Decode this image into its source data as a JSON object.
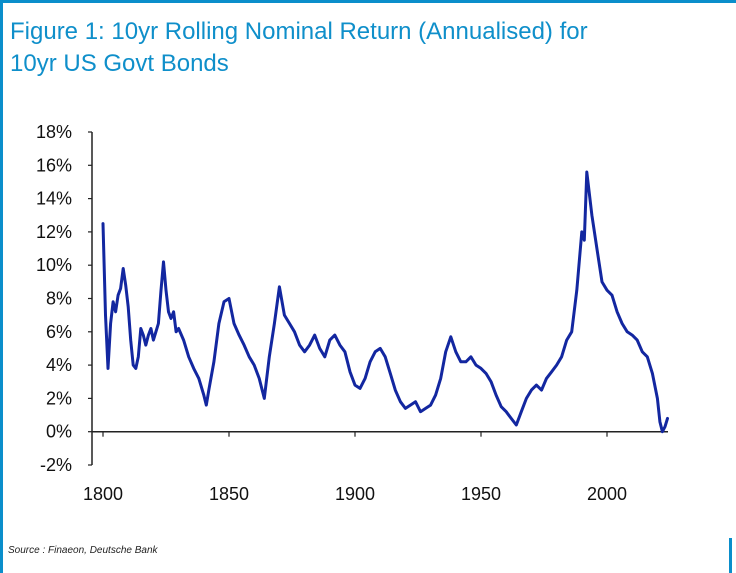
{
  "title_line1": "Figure 1: 10yr Rolling Nominal Return (Annualised) for",
  "title_line2": "10yr US Govt Bonds",
  "source": "Source : Finaeon, Deutsche Bank",
  "colors": {
    "frame": "#0a8ecb",
    "title": "#0f8fca",
    "series": "#1327a0"
  },
  "chart_data": {
    "type": "line",
    "title": "Figure 1: 10yr Rolling Nominal Return (Annualised) for 10yr US Govt Bonds",
    "xlabel": "",
    "ylabel": "",
    "xlim": [
      1800,
      2025
    ],
    "ylim": [
      -2,
      18
    ],
    "x_ticks": [
      1800,
      1850,
      1900,
      1950,
      2000
    ],
    "y_ticks": [
      -2,
      0,
      2,
      4,
      6,
      8,
      10,
      12,
      14,
      16,
      18
    ],
    "x_tick_labels": [
      "1800",
      "1850",
      "1900",
      "1950",
      "2000"
    ],
    "y_tick_labels": [
      "-2%",
      "0%",
      "2%",
      "4%",
      "6%",
      "8%",
      "10%",
      "12%",
      "14%",
      "16%",
      "18%"
    ],
    "grid": false,
    "legend": "none",
    "series": [
      {
        "x": [
          1800,
          1801,
          1802,
          1803,
          1804,
          1805,
          1806,
          1807,
          1808,
          1809,
          1810,
          1811,
          1812,
          1813,
          1814,
          1815,
          1816,
          1817,
          1818,
          1819,
          1820,
          1821,
          1822,
          1823,
          1824,
          1825,
          1826,
          1827,
          1828,
          1829,
          1830,
          1832,
          1834,
          1836,
          1838,
          1840,
          1841,
          1842,
          1844,
          1846,
          1848,
          1850,
          1852,
          1854,
          1856,
          1858,
          1860,
          1862,
          1864,
          1866,
          1868,
          1870,
          1872,
          1874,
          1876,
          1878,
          1880,
          1882,
          1884,
          1886,
          1888,
          1890,
          1892,
          1894,
          1896,
          1898,
          1900,
          1902,
          1904,
          1906,
          1908,
          1910,
          1912,
          1914,
          1916,
          1918,
          1920,
          1922,
          1924,
          1926,
          1928,
          1930,
          1932,
          1934,
          1936,
          1938,
          1940,
          1942,
          1944,
          1946,
          1948,
          1950,
          1952,
          1954,
          1956,
          1958,
          1960,
          1962,
          1964,
          1966,
          1968,
          1970,
          1972,
          1974,
          1976,
          1978,
          1980,
          1982,
          1984,
          1986,
          1988,
          1990,
          1991,
          1992,
          1994,
          1996,
          1998,
          2000,
          2002,
          2004,
          2006,
          2008,
          2010,
          2012,
          2014,
          2016,
          2018,
          2020,
          2021,
          2022,
          2023,
          2024
        ],
        "y": [
          12.5,
          7.0,
          3.8,
          6.5,
          7.8,
          7.2,
          8.2,
          8.6,
          9.8,
          8.8,
          7.5,
          5.5,
          4.0,
          3.8,
          4.5,
          6.2,
          5.8,
          5.2,
          5.8,
          6.2,
          5.5,
          6.0,
          6.5,
          8.5,
          10.2,
          8.5,
          7.2,
          6.8,
          7.2,
          6.0,
          6.2,
          5.5,
          4.5,
          3.8,
          3.2,
          2.2,
          1.6,
          2.5,
          4.2,
          6.5,
          7.8,
          8.0,
          6.5,
          5.8,
          5.2,
          4.5,
          4.0,
          3.2,
          2.0,
          4.5,
          6.5,
          8.7,
          7.0,
          6.5,
          6.0,
          5.2,
          4.8,
          5.2,
          5.8,
          5.0,
          4.5,
          5.5,
          5.8,
          5.2,
          4.8,
          3.6,
          2.8,
          2.6,
          3.2,
          4.2,
          4.8,
          5.0,
          4.5,
          3.5,
          2.5,
          1.8,
          1.4,
          1.6,
          1.8,
          1.2,
          1.4,
          1.6,
          2.2,
          3.2,
          4.8,
          5.7,
          4.8,
          4.2,
          4.2,
          4.5,
          4.0,
          3.8,
          3.5,
          3.0,
          2.2,
          1.5,
          1.2,
          0.8,
          0.4,
          1.2,
          2.0,
          2.5,
          2.8,
          2.5,
          3.2,
          3.6,
          4.0,
          4.5,
          5.5,
          6.0,
          8.5,
          12.0,
          11.5,
          15.6,
          13.0,
          11.0,
          9.0,
          8.5,
          8.2,
          7.2,
          6.5,
          6.0,
          5.8,
          5.5,
          4.8,
          4.5,
          3.5,
          2.0,
          0.6,
          0.0,
          0.3,
          0.8
        ]
      }
    ]
  }
}
